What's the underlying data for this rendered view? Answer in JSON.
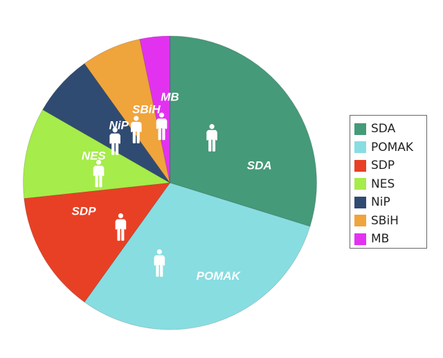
{
  "chart_data": {
    "type": "pie",
    "title": "",
    "start_angle": "top, clockwise",
    "legend_position": "right",
    "slices": [
      {
        "label": "SDA",
        "value": 29.8,
        "color": "#459a79",
        "icon": "person-icon"
      },
      {
        "label": "POMAK",
        "value": 30.1,
        "color": "#88dde1",
        "icon": "person-icon"
      },
      {
        "label": "SDP",
        "value": 13.4,
        "color": "#e84025",
        "icon": "person-icon"
      },
      {
        "label": "NES",
        "value": 10.0,
        "color": "#a6ec4a",
        "icon": "person-icon"
      },
      {
        "label": "NiP",
        "value": 6.8,
        "color": "#304b72",
        "icon": "person-icon"
      },
      {
        "label": "SBiH",
        "value": 6.6,
        "color": "#f0a43c",
        "icon": "person-icon"
      },
      {
        "label": "MB",
        "value": 3.3,
        "color": "#e232f0",
        "icon": "person-icon"
      }
    ]
  },
  "legend": {
    "items": [
      {
        "label": "SDA",
        "color": "#459a79"
      },
      {
        "label": "POMAK",
        "color": "#88dde1"
      },
      {
        "label": "SDP",
        "color": "#e84025"
      },
      {
        "label": "NES",
        "color": "#a6ec4a"
      },
      {
        "label": "NiP",
        "color": "#304b72"
      },
      {
        "label": "SBiH",
        "color": "#f0a43c"
      },
      {
        "label": "MB",
        "color": "#e232f0"
      }
    ]
  }
}
